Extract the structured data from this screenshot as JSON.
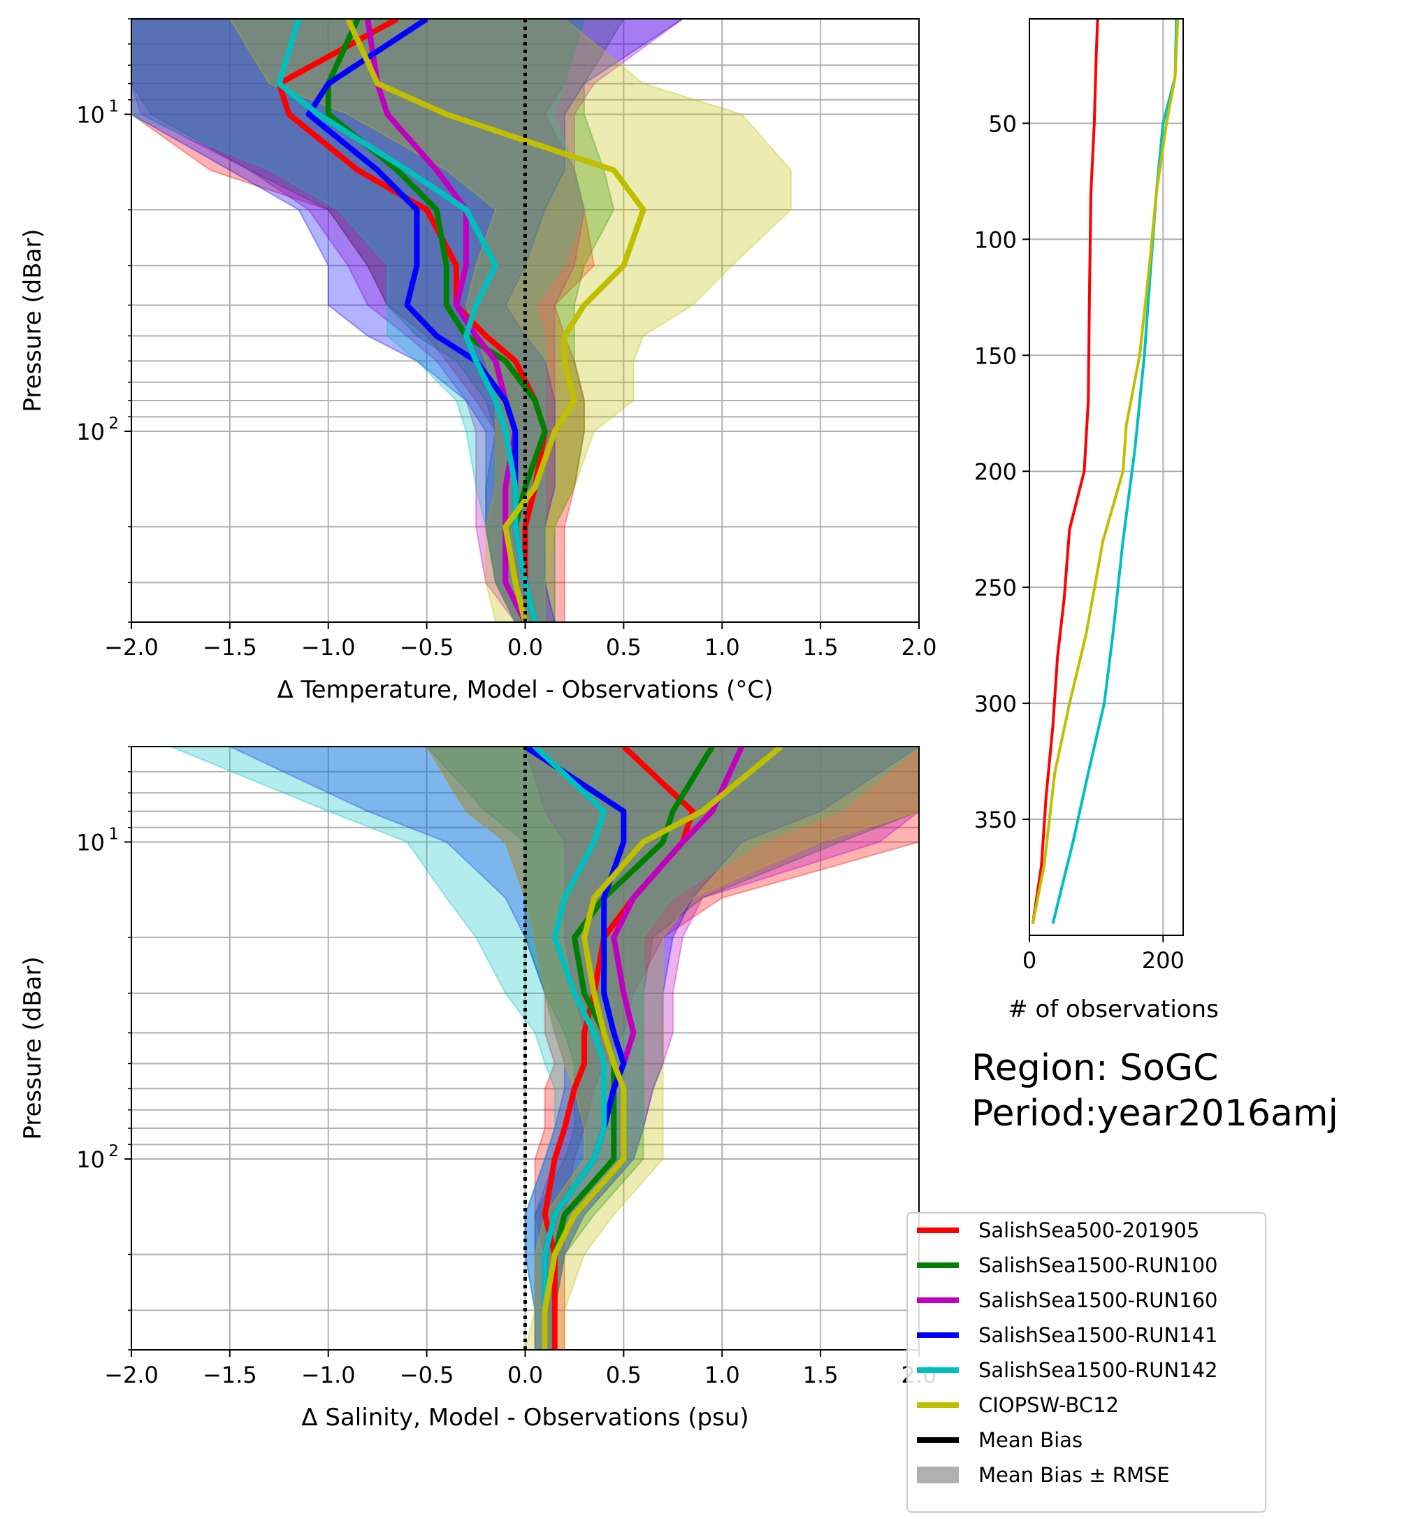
{
  "chart_data": [
    {
      "type": "line",
      "panel": "temperature",
      "xlabel": "Δ Temperature, Model - Observations (°C)",
      "ylabel": "Pressure (dBar)",
      "xlim": [
        -2.0,
        2.0
      ],
      "ylim": [
        400,
        5
      ],
      "yscale": "log",
      "x_ticks": [
        "−2.0",
        "−1.5",
        "−1.0",
        "−0.5",
        "0.0",
        "0.5",
        "1.0",
        "1.5",
        "2.0"
      ],
      "y_ticks": [
        "10",
        "10"
      ],
      "grid": true,
      "depth": [
        5,
        8,
        10,
        15,
        20,
        30,
        40,
        50,
        60,
        80,
        100,
        150,
        200,
        300,
        400
      ],
      "series": [
        {
          "name": "SalishSea500-201905",
          "color": "#ff0000",
          "mean": [
            -0.65,
            -1.25,
            -1.2,
            -0.85,
            -0.5,
            -0.35,
            -0.35,
            -0.2,
            -0.05,
            0.05,
            0.1,
            0.05,
            0.0,
            0.0,
            0.05
          ],
          "low": [
            -2.0,
            -2.0,
            -2.0,
            -1.6,
            -1.0,
            -0.8,
            -0.7,
            -0.5,
            -0.4,
            -0.25,
            -0.15,
            -0.15,
            -0.2,
            -0.15,
            -0.05
          ],
          "high": [
            0.3,
            0.2,
            0.1,
            0.25,
            0.3,
            0.35,
            0.15,
            0.2,
            0.25,
            0.3,
            0.3,
            0.25,
            0.2,
            0.2,
            0.2
          ]
        },
        {
          "name": "SalishSea1500-RUN100",
          "color": "#008000",
          "mean": [
            -0.85,
            -1.0,
            -1.0,
            -0.65,
            -0.45,
            -0.4,
            -0.4,
            -0.3,
            -0.1,
            0.05,
            0.1,
            0.0,
            -0.05,
            0.0,
            0.05
          ],
          "low": [
            -2.0,
            -2.0,
            -1.9,
            -1.4,
            -1.0,
            -0.8,
            -0.7,
            -0.55,
            -0.35,
            -0.2,
            -0.15,
            -0.2,
            -0.2,
            -0.15,
            -0.05
          ],
          "high": [
            0.5,
            0.3,
            0.3,
            0.4,
            0.45,
            0.3,
            0.25,
            0.25,
            0.25,
            0.3,
            0.3,
            0.25,
            0.15,
            0.15,
            0.15
          ]
        },
        {
          "name": "SalishSea1500-RUN160",
          "color": "#bf00bf",
          "mean": [
            -0.8,
            -0.75,
            -0.7,
            -0.45,
            -0.3,
            -0.3,
            -0.35,
            -0.25,
            -0.15,
            -0.1,
            -0.05,
            -0.1,
            -0.1,
            -0.1,
            0.0
          ],
          "low": [
            -2.0,
            -2.0,
            -1.95,
            -1.4,
            -1.1,
            -0.9,
            -0.8,
            -0.6,
            -0.45,
            -0.3,
            -0.25,
            -0.25,
            -0.25,
            -0.2,
            -0.05
          ],
          "high": [
            0.8,
            0.35,
            0.25,
            0.25,
            0.3,
            0.25,
            0.15,
            0.15,
            0.15,
            0.15,
            0.15,
            0.15,
            0.1,
            0.1,
            0.1
          ]
        },
        {
          "name": "SalishSea1500-RUN141",
          "color": "#0000ff",
          "mean": [
            -0.5,
            -1.0,
            -1.1,
            -0.75,
            -0.55,
            -0.55,
            -0.6,
            -0.45,
            -0.25,
            -0.1,
            -0.05,
            -0.05,
            -0.05,
            0.0,
            0.05
          ],
          "low": [
            -2.0,
            -2.0,
            -2.0,
            -1.5,
            -1.15,
            -1.0,
            -1.0,
            -0.8,
            -0.55,
            -0.3,
            -0.2,
            -0.2,
            -0.2,
            -0.15,
            -0.05
          ],
          "high": [
            0.8,
            0.3,
            0.2,
            0.2,
            0.1,
            0.0,
            -0.1,
            0.0,
            0.1,
            0.15,
            0.15,
            0.15,
            0.1,
            0.1,
            0.15
          ]
        },
        {
          "name": "SalishSea1500-RUN142",
          "color": "#00bfbf",
          "mean": [
            -1.15,
            -1.25,
            -1.05,
            -0.6,
            -0.3,
            -0.15,
            -0.25,
            -0.3,
            -0.25,
            -0.15,
            -0.1,
            -0.05,
            -0.05,
            0.0,
            0.05
          ],
          "low": [
            -2.0,
            -2.0,
            -2.0,
            -1.3,
            -0.95,
            -0.7,
            -0.7,
            -0.7,
            -0.55,
            -0.35,
            -0.3,
            -0.25,
            -0.2,
            -0.15,
            -0.05
          ],
          "high": [
            0.3,
            0.2,
            0.15,
            0.25,
            0.3,
            0.2,
            0.05,
            0.1,
            0.1,
            0.1,
            0.1,
            0.1,
            0.1,
            0.1,
            0.1
          ]
        },
        {
          "name": "CIOPSW-BC12",
          "color": "#bfbf00",
          "mean": [
            -0.9,
            -0.75,
            -0.4,
            0.45,
            0.6,
            0.5,
            0.3,
            0.2,
            0.2,
            0.25,
            0.15,
            0.05,
            -0.1,
            -0.05,
            0.0
          ],
          "low": [
            -1.5,
            -1.3,
            -0.9,
            -0.4,
            -0.15,
            -0.25,
            -0.3,
            -0.25,
            -0.2,
            -0.15,
            -0.15,
            -0.15,
            -0.2,
            -0.2,
            -0.15
          ],
          "high": [
            0.2,
            0.6,
            1.1,
            1.35,
            1.35,
            1.05,
            0.85,
            0.6,
            0.55,
            0.55,
            0.35,
            0.25,
            0.15,
            0.1,
            0.1
          ]
        }
      ]
    },
    {
      "type": "line",
      "panel": "salinity",
      "xlabel": "Δ Salinity, Model - Observations (psu)",
      "ylabel": "Pressure (dBar)",
      "xlim": [
        -2.0,
        2.0
      ],
      "ylim": [
        400,
        5
      ],
      "yscale": "log",
      "x_ticks": [
        "−2.0",
        "−1.5",
        "−1.0",
        "−0.5",
        "0.0",
        "0.5",
        "1.0",
        "1.5",
        "2.0"
      ],
      "y_ticks": [
        "10",
        "10"
      ],
      "grid": true,
      "depth": [
        5,
        8,
        10,
        15,
        20,
        30,
        40,
        50,
        60,
        80,
        100,
        150,
        200,
        300,
        400
      ],
      "series": [
        {
          "name": "SalishSea500-201905",
          "color": "#ff0000",
          "mean": [
            0.5,
            0.85,
            0.8,
            0.55,
            0.4,
            0.35,
            0.3,
            0.3,
            0.25,
            0.2,
            0.15,
            0.1,
            0.15,
            0.15,
            0.15
          ],
          "low": [
            -0.5,
            -0.3,
            -0.1,
            0.0,
            0.05,
            0.1,
            0.1,
            0.15,
            0.1,
            0.1,
            0.05,
            0.05,
            0.1,
            0.1,
            0.1
          ],
          "high": [
            2.0,
            2.0,
            2.0,
            1.0,
            0.7,
            0.55,
            0.5,
            0.4,
            0.35,
            0.3,
            0.25,
            0.2,
            0.2,
            0.2,
            0.2
          ]
        },
        {
          "name": "SalishSea1500-RUN100",
          "color": "#008000",
          "mean": [
            0.95,
            0.75,
            0.7,
            0.4,
            0.25,
            0.3,
            0.4,
            0.45,
            0.45,
            0.45,
            0.45,
            0.2,
            0.15,
            0.1,
            0.1
          ],
          "low": [
            -0.5,
            -0.2,
            0.0,
            0.0,
            0.0,
            0.1,
            0.2,
            0.25,
            0.25,
            0.25,
            0.2,
            0.05,
            0.05,
            0.05,
            0.05
          ],
          "high": [
            2.0,
            2.0,
            1.6,
            0.9,
            0.65,
            0.6,
            0.6,
            0.6,
            0.6,
            0.6,
            0.6,
            0.35,
            0.2,
            0.15,
            0.15
          ]
        },
        {
          "name": "SalishSea1500-RUN160",
          "color": "#bf00bf",
          "mean": [
            1.1,
            0.95,
            0.8,
            0.55,
            0.45,
            0.5,
            0.55,
            0.5,
            0.45,
            0.4,
            0.35,
            0.15,
            0.1,
            0.1,
            0.1
          ],
          "low": [
            0.0,
            0.1,
            0.2,
            0.2,
            0.2,
            0.25,
            0.3,
            0.3,
            0.25,
            0.2,
            0.15,
            0.05,
            0.05,
            0.05,
            0.05
          ],
          "high": [
            2.0,
            2.0,
            1.8,
            0.9,
            0.8,
            0.75,
            0.75,
            0.7,
            0.65,
            0.6,
            0.55,
            0.3,
            0.2,
            0.15,
            0.15
          ]
        },
        {
          "name": "SalishSea1500-RUN141",
          "color": "#0000ff",
          "mean": [
            0.0,
            0.5,
            0.5,
            0.4,
            0.4,
            0.4,
            0.45,
            0.5,
            0.45,
            0.4,
            0.35,
            0.15,
            0.1,
            0.1,
            0.1
          ],
          "low": [
            -1.5,
            -0.8,
            -0.4,
            -0.1,
            0.0,
            0.1,
            0.15,
            0.2,
            0.2,
            0.15,
            0.1,
            0.0,
            0.0,
            0.05,
            0.05
          ],
          "high": [
            2.0,
            1.5,
            1.1,
            0.85,
            0.75,
            0.7,
            0.7,
            0.7,
            0.65,
            0.6,
            0.55,
            0.3,
            0.2,
            0.15,
            0.15
          ]
        },
        {
          "name": "SalishSea1500-RUN142",
          "color": "#00bfbf",
          "mean": [
            0.05,
            0.4,
            0.35,
            0.2,
            0.15,
            0.25,
            0.35,
            0.4,
            0.4,
            0.4,
            0.35,
            0.15,
            0.1,
            0.1,
            0.1
          ],
          "low": [
            -1.8,
            -1.0,
            -0.6,
            -0.4,
            -0.25,
            -0.1,
            0.05,
            0.1,
            0.15,
            0.15,
            0.1,
            0.0,
            0.0,
            0.05,
            0.05
          ],
          "high": [
            2.0,
            1.6,
            1.2,
            0.75,
            0.6,
            0.6,
            0.6,
            0.6,
            0.6,
            0.6,
            0.55,
            0.3,
            0.2,
            0.15,
            0.15
          ]
        },
        {
          "name": "CIOPSW-BC12",
          "color": "#bfbf00",
          "mean": [
            1.3,
            0.9,
            0.6,
            0.35,
            0.3,
            0.35,
            0.4,
            0.45,
            0.5,
            0.5,
            0.5,
            0.25,
            0.15,
            0.1,
            0.1
          ],
          "low": [
            -0.5,
            -0.3,
            -0.1,
            0.0,
            0.05,
            0.1,
            0.15,
            0.2,
            0.25,
            0.3,
            0.3,
            0.1,
            0.05,
            0.05,
            0.0
          ],
          "high": [
            2.0,
            2.0,
            1.5,
            0.85,
            0.7,
            0.7,
            0.7,
            0.7,
            0.7,
            0.7,
            0.7,
            0.45,
            0.3,
            0.2,
            0.2
          ]
        }
      ]
    },
    {
      "type": "line",
      "panel": "observations",
      "xlabel": "# of observations",
      "ylim": [
        400,
        5
      ],
      "yscale": "linear",
      "xlim": [
        0,
        230
      ],
      "x_ticks": [
        "0",
        "200"
      ],
      "y_ticks": [
        "50",
        "100",
        "150",
        "200",
        "250",
        "300",
        "350"
      ],
      "grid": true,
      "series": [
        {
          "name": "SalishSea500-201905",
          "color": "#ff0000",
          "depth": [
            5,
            20,
            50,
            80,
            120,
            170,
            200,
            225,
            255,
            280,
            310,
            340,
            370,
            395
          ],
          "count": [
            102,
            100,
            97,
            92,
            90,
            88,
            82,
            60,
            52,
            42,
            35,
            25,
            18,
            5
          ]
        },
        {
          "name": "SalishSea1500-RUN142",
          "color": "#00bfbf",
          "depth": [
            5,
            30,
            50,
            80,
            110,
            150,
            190,
            230,
            270,
            300,
            330,
            360,
            395
          ],
          "count": [
            220,
            218,
            200,
            190,
            182,
            172,
            158,
            140,
            125,
            112,
            88,
            65,
            35
          ]
        },
        {
          "name": "CIOPSW-BC12",
          "color": "#bfbf00",
          "depth": [
            5,
            30,
            50,
            80,
            110,
            150,
            180,
            200,
            230,
            270,
            300,
            330,
            370,
            395
          ],
          "count": [
            222,
            218,
            205,
            190,
            180,
            165,
            145,
            140,
            110,
            85,
            60,
            38,
            22,
            5
          ]
        }
      ]
    }
  ],
  "temperature_yexp": "1",
  "temperature_yexp2": "2",
  "salinity_yexp": "1",
  "salinity_yexp2": "2",
  "region": "Region: SoGC",
  "period": "Period:year2016amj",
  "legend": [
    {
      "label": "SalishSea500-201905",
      "color": "#ff0000",
      "kind": "line"
    },
    {
      "label": "SalishSea1500-RUN100",
      "color": "#008000",
      "kind": "line"
    },
    {
      "label": "SalishSea1500-RUN160",
      "color": "#bf00bf",
      "kind": "line"
    },
    {
      "label": "SalishSea1500-RUN141",
      "color": "#0000ff",
      "kind": "line"
    },
    {
      "label": "SalishSea1500-RUN142",
      "color": "#00bfbf",
      "kind": "line"
    },
    {
      "label": "CIOPSW-BC12",
      "color": "#bfbf00",
      "kind": "line"
    },
    {
      "label": "Mean Bias",
      "color": "#000000",
      "kind": "line"
    },
    {
      "label": "Mean Bias ± RMSE",
      "color": "#b0b0b0",
      "kind": "patch"
    }
  ]
}
